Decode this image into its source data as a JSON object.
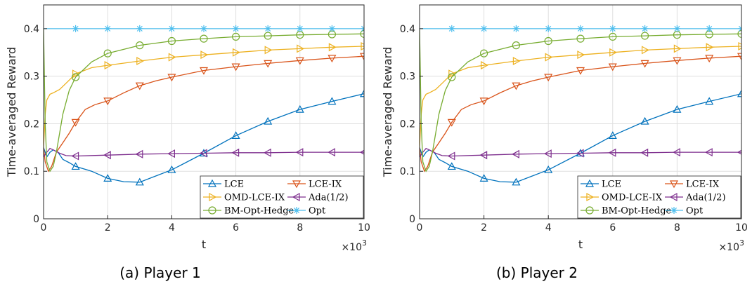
{
  "chart_data": [
    {
      "type": "line",
      "caption": "(a) Player 1",
      "xlabel": "t",
      "ylabel": "Time-averaged Reward",
      "x_multiplier_label": "×10",
      "x_multiplier_exp": "3",
      "xlim": [
        0,
        10
      ],
      "ylim": [
        0,
        0.45
      ],
      "xticks": [
        0,
        2,
        4,
        6,
        8,
        10
      ],
      "yticks": [
        0,
        0.1,
        0.2,
        0.3,
        0.4
      ],
      "grid": true,
      "legend_position": "bottom-right",
      "series": [
        {
          "name": "LCE",
          "color": "#0072BD",
          "marker": "triangle-up",
          "x": [
            0,
            0.05,
            0.1,
            0.2,
            0.3,
            0.45,
            0.6,
            0.8,
            1.0,
            1.5,
            2.0,
            2.5,
            3.0,
            3.5,
            4.0,
            5.0,
            6.0,
            7.0,
            8.0,
            9.0,
            10.0
          ],
          "y": [
            0.15,
            0.14,
            0.13,
            0.14,
            0.145,
            0.14,
            0.125,
            0.118,
            0.11,
            0.1,
            0.085,
            0.078,
            0.077,
            0.09,
            0.103,
            0.138,
            0.175,
            0.205,
            0.23,
            0.247,
            0.263
          ]
        },
        {
          "name": "LCE-IX",
          "color": "#D95319",
          "marker": "triangle-down",
          "x": [
            0,
            0.05,
            0.15,
            0.25,
            0.4,
            0.6,
            0.8,
            1.0,
            1.3,
            1.6,
            2.0,
            2.5,
            3.0,
            3.5,
            4.0,
            5.0,
            6.0,
            7.0,
            8.0,
            9.0,
            10.0
          ],
          "y": [
            0.15,
            0.12,
            0.1,
            0.11,
            0.14,
            0.16,
            0.18,
            0.203,
            0.23,
            0.24,
            0.248,
            0.265,
            0.28,
            0.29,
            0.298,
            0.312,
            0.32,
            0.327,
            0.333,
            0.338,
            0.342
          ]
        },
        {
          "name": "OMD-LCE-IX",
          "color": "#EDB120",
          "marker": "triangle-right",
          "x": [
            0,
            0.05,
            0.1,
            0.2,
            0.3,
            0.5,
            0.7,
            1.0,
            1.5,
            2.0,
            3.0,
            4.0,
            5.0,
            6.0,
            7.0,
            8.0,
            9.0,
            10.0
          ],
          "y": [
            0.15,
            0.22,
            0.25,
            0.262,
            0.265,
            0.272,
            0.285,
            0.305,
            0.318,
            0.323,
            0.332,
            0.34,
            0.345,
            0.35,
            0.355,
            0.358,
            0.361,
            0.363
          ]
        },
        {
          "name": "Ada(1/2)",
          "color": "#7E2F8E",
          "marker": "triangle-left",
          "x": [
            0,
            0.1,
            0.2,
            0.3,
            0.5,
            0.7,
            1.0,
            2.0,
            3.0,
            4.0,
            5.0,
            6.0,
            7.0,
            8.0,
            9.0,
            10.0
          ],
          "y": [
            0.13,
            0.14,
            0.148,
            0.145,
            0.138,
            0.133,
            0.132,
            0.134,
            0.136,
            0.137,
            0.138,
            0.139,
            0.139,
            0.14,
            0.14,
            0.14
          ]
        },
        {
          "name": "BM-Opt-Hedge",
          "color": "#77AC30",
          "marker": "circle",
          "x": [
            0,
            0.05,
            0.1,
            0.2,
            0.3,
            0.4,
            0.5,
            0.6,
            0.8,
            1.0,
            1.5,
            2.0,
            3.0,
            4.0,
            5.0,
            6.0,
            7.0,
            8.0,
            9.0,
            10.0
          ],
          "y": [
            0.4,
            0.2,
            0.12,
            0.1,
            0.11,
            0.14,
            0.18,
            0.22,
            0.27,
            0.298,
            0.33,
            0.348,
            0.365,
            0.374,
            0.379,
            0.383,
            0.385,
            0.387,
            0.388,
            0.389
          ]
        },
        {
          "name": "Opt",
          "color": "#4DBEEE",
          "marker": "asterisk",
          "x": [
            0,
            1,
            2,
            3,
            4,
            5,
            6,
            7,
            8,
            9,
            10
          ],
          "y": [
            0.4,
            0.4,
            0.4,
            0.4,
            0.4,
            0.4,
            0.4,
            0.4,
            0.4,
            0.4,
            0.4
          ]
        }
      ]
    },
    {
      "type": "line",
      "caption": "(b) Player 2",
      "xlabel": "t",
      "ylabel": "Time-averaged Reward",
      "x_multiplier_label": "×10",
      "x_multiplier_exp": "3",
      "xlim": [
        0,
        10
      ],
      "ylim": [
        0,
        0.45
      ],
      "xticks": [
        0,
        2,
        4,
        6,
        8,
        10
      ],
      "yticks": [
        0,
        0.1,
        0.2,
        0.3,
        0.4
      ],
      "grid": true,
      "legend_position": "bottom-right",
      "series": [
        {
          "name": "LCE",
          "color": "#0072BD",
          "marker": "triangle-up",
          "x": [
            0,
            0.05,
            0.1,
            0.2,
            0.3,
            0.45,
            0.6,
            0.8,
            1.0,
            1.5,
            2.0,
            2.5,
            3.0,
            3.5,
            4.0,
            5.0,
            6.0,
            7.0,
            8.0,
            9.0,
            10.0
          ],
          "y": [
            0.15,
            0.14,
            0.13,
            0.14,
            0.145,
            0.14,
            0.125,
            0.118,
            0.11,
            0.1,
            0.085,
            0.078,
            0.077,
            0.09,
            0.103,
            0.138,
            0.175,
            0.205,
            0.23,
            0.247,
            0.263
          ]
        },
        {
          "name": "LCE-IX",
          "color": "#D95319",
          "marker": "triangle-down",
          "x": [
            0,
            0.05,
            0.15,
            0.25,
            0.4,
            0.6,
            0.8,
            1.0,
            1.3,
            1.6,
            2.0,
            2.5,
            3.0,
            3.5,
            4.0,
            5.0,
            6.0,
            7.0,
            8.0,
            9.0,
            10.0
          ],
          "y": [
            0.15,
            0.12,
            0.1,
            0.11,
            0.14,
            0.16,
            0.18,
            0.203,
            0.23,
            0.24,
            0.248,
            0.265,
            0.28,
            0.29,
            0.298,
            0.312,
            0.32,
            0.327,
            0.333,
            0.338,
            0.342
          ]
        },
        {
          "name": "OMD-LCE-IX",
          "color": "#EDB120",
          "marker": "triangle-right",
          "x": [
            0,
            0.05,
            0.1,
            0.2,
            0.3,
            0.5,
            0.7,
            1.0,
            1.5,
            2.0,
            3.0,
            4.0,
            5.0,
            6.0,
            7.0,
            8.0,
            9.0,
            10.0
          ],
          "y": [
            0.15,
            0.22,
            0.25,
            0.262,
            0.265,
            0.272,
            0.285,
            0.305,
            0.318,
            0.323,
            0.332,
            0.34,
            0.345,
            0.35,
            0.355,
            0.358,
            0.361,
            0.363
          ]
        },
        {
          "name": "Ada(1/2)",
          "color": "#7E2F8E",
          "marker": "triangle-left",
          "x": [
            0,
            0.1,
            0.2,
            0.3,
            0.5,
            0.7,
            1.0,
            2.0,
            3.0,
            4.0,
            5.0,
            6.0,
            7.0,
            8.0,
            9.0,
            10.0
          ],
          "y": [
            0.13,
            0.14,
            0.148,
            0.145,
            0.138,
            0.133,
            0.132,
            0.134,
            0.136,
            0.137,
            0.138,
            0.139,
            0.139,
            0.14,
            0.14,
            0.14
          ]
        },
        {
          "name": "BM-Opt-Hedge",
          "color": "#77AC30",
          "marker": "circle",
          "x": [
            0,
            0.05,
            0.1,
            0.2,
            0.3,
            0.4,
            0.5,
            0.6,
            0.8,
            1.0,
            1.5,
            2.0,
            3.0,
            4.0,
            5.0,
            6.0,
            7.0,
            8.0,
            9.0,
            10.0
          ],
          "y": [
            0.4,
            0.2,
            0.12,
            0.1,
            0.11,
            0.14,
            0.18,
            0.22,
            0.27,
            0.298,
            0.33,
            0.348,
            0.365,
            0.374,
            0.379,
            0.383,
            0.385,
            0.387,
            0.388,
            0.389
          ]
        },
        {
          "name": "Opt",
          "color": "#4DBEEE",
          "marker": "asterisk",
          "x": [
            0,
            1,
            2,
            3,
            4,
            5,
            6,
            7,
            8,
            9,
            10
          ],
          "y": [
            0.4,
            0.4,
            0.4,
            0.4,
            0.4,
            0.4,
            0.4,
            0.4,
            0.4,
            0.4,
            0.4
          ]
        }
      ]
    }
  ]
}
